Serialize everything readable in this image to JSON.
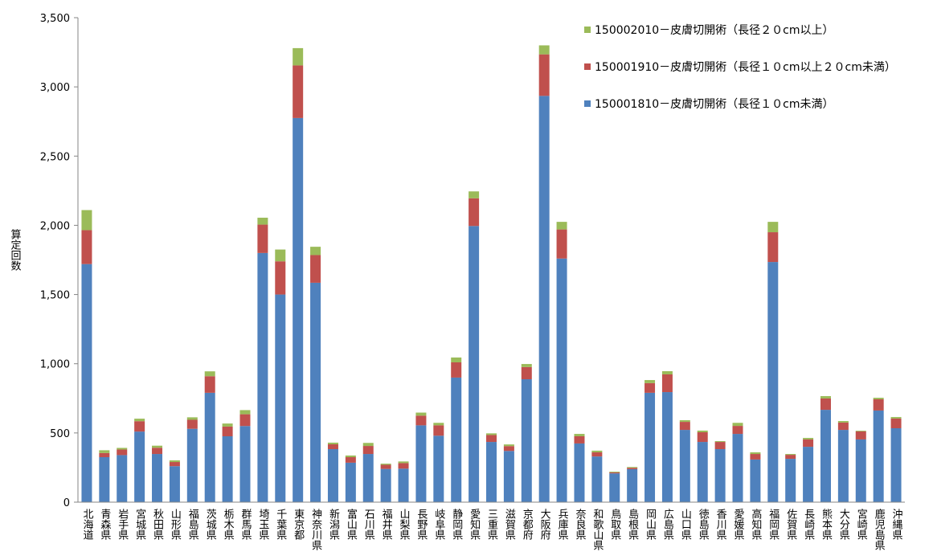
{
  "chart_data": {
    "type": "stacked_bar",
    "y_label": "算定回数",
    "categories": [
      "北海道",
      "青森県",
      "岩手県",
      "宮城県",
      "秋田県",
      "山形県",
      "福島県",
      "茨城県",
      "栃木県",
      "群馬県",
      "埼玉県",
      "千葉県",
      "東京都",
      "神奈川県",
      "新潟県",
      "富山県",
      "石川県",
      "福井県",
      "山梨県",
      "長野県",
      "岐阜県",
      "静岡県",
      "愛知県",
      "三重県",
      "滋賀県",
      "京都府",
      "大阪府",
      "兵庫県",
      "奈良県",
      "和歌山県",
      "鳥取県",
      "島根県",
      "岡山県",
      "広島県",
      "山口県",
      "徳島県",
      "香川県",
      "愛媛県",
      "高知県",
      "福岡県",
      "佐賀県",
      "長崎県",
      "熊本県",
      "大分県",
      "宮崎県",
      "鹿児島県",
      "沖縄県"
    ],
    "series": [
      {
        "name": "150001810－皮膚切開術（長径１０cm未満）",
        "color": "#4f81bd",
        "values": [
          1720,
          325,
          340,
          510,
          348,
          260,
          530,
          790,
          476,
          550,
          1800,
          1500,
          2775,
          1585,
          383,
          285,
          348,
          240,
          242,
          555,
          480,
          900,
          1995,
          435,
          370,
          888,
          2935,
          1760,
          424,
          330,
          208,
          238,
          790,
          795,
          522,
          435,
          383,
          493,
          308,
          1735,
          313,
          400,
          667,
          522,
          453,
          662,
          534
        ]
      },
      {
        "name": "150001910－皮膚切開術（長径１０cm以上２０cm未満）",
        "color": "#c0504d",
        "values": [
          245,
          30,
          40,
          75,
          45,
          30,
          65,
          120,
          70,
          85,
          205,
          240,
          380,
          200,
          35,
          40,
          58,
          30,
          40,
          70,
          75,
          110,
          200,
          50,
          35,
          88,
          300,
          210,
          52,
          30,
          7,
          10,
          70,
          128,
          58,
          70,
          52,
          58,
          40,
          215,
          29,
          53,
          82,
          53,
          58,
          81,
          70
        ]
      },
      {
        "name": "150002010－皮膚切開術（長径２０cm以上）",
        "color": "#9bbb59",
        "values": [
          145,
          20,
          12,
          18,
          15,
          12,
          18,
          35,
          22,
          30,
          50,
          85,
          125,
          60,
          12,
          12,
          22,
          8,
          12,
          22,
          18,
          35,
          50,
          12,
          12,
          22,
          65,
          55,
          17,
          12,
          5,
          6,
          22,
          23,
          12,
          12,
          6,
          22,
          12,
          75,
          6,
          11,
          17,
          11,
          5,
          11,
          11
        ]
      }
    ],
    "ylim": [
      0,
      3500
    ],
    "yticks": [
      0,
      500,
      {
        "value": 1000,
        "label": "1,000"
      },
      {
        "value": 1500,
        "label": "1,500"
      },
      {
        "value": 2000,
        "label": "2,000"
      },
      {
        "value": 2500,
        "label": "2,500"
      },
      {
        "value": 3000,
        "label": "3,000"
      },
      {
        "value": 3500,
        "label": "3,500"
      }
    ],
    "grid": false,
    "legend": "top-right"
  }
}
